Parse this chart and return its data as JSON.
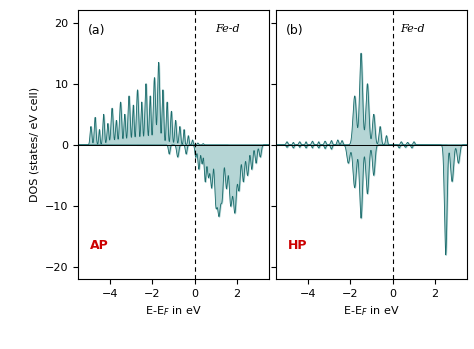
{
  "panel_a_label": "(a)",
  "panel_b_label": "(b)",
  "panel_a_tag": "AP",
  "panel_b_tag": "HP",
  "fe_d_label": "Fe-d",
  "xlabel": "E-E$_F$ in eV",
  "ylabel": "DOS (states/ eV cell)",
  "xlim": [
    -5.5,
    3.5
  ],
  "ylim": [
    -22,
    22
  ],
  "yticks": [
    -20,
    -10,
    0,
    10,
    20
  ],
  "xticks": [
    -4,
    -2,
    0,
    2
  ],
  "fermi_line_x": 0.0,
  "line_color": "#1a6b6b",
  "fill_color": "#a8cece",
  "tag_color": "#cc0000",
  "dpi": 100,
  "figsize": [
    4.74,
    3.49
  ]
}
